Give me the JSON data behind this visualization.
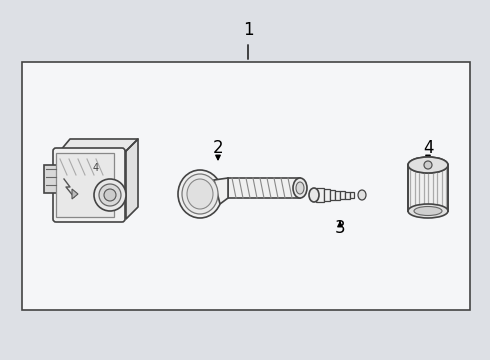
{
  "bg_color": "#dde0e5",
  "box_bg": "#eef0f3",
  "box_border": "#555555",
  "outer_bg": "#dde0e5",
  "figsize": [
    4.9,
    3.6
  ],
  "dpi": 100
}
